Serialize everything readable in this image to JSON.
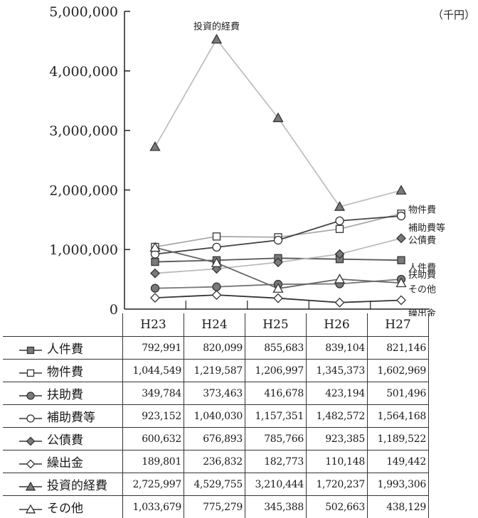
{
  "chart_data": {
    "type": "line",
    "title": "",
    "unit_label": "（千円）",
    "xlabel": "",
    "ylabel": "",
    "ylim": [
      0,
      5000000
    ],
    "y_ticks": [
      "0",
      "1,000,000",
      "2,000,000",
      "3,000,000",
      "4,000,000",
      "5,000,000"
    ],
    "categories": [
      "H23",
      "H24",
      "H25",
      "H26",
      "H27"
    ],
    "grid": false,
    "series": [
      {
        "name": "人件費",
        "marker": "square-filled",
        "values": [
          792991,
          820099,
          855683,
          839104,
          821146
        ],
        "values_text": [
          "792,991",
          "820,099",
          "855,683",
          "839,104",
          "821,146"
        ],
        "color": "#555555"
      },
      {
        "name": "物件費",
        "marker": "square-open",
        "values": [
          1044549,
          1219587,
          1206997,
          1345373,
          1602969
        ],
        "values_text": [
          "1,044,549",
          "1,219,587",
          "1,206,997",
          "1,345,373",
          "1,602,969"
        ],
        "color": "#aaaaaa"
      },
      {
        "name": "扶助費",
        "marker": "circle-filled",
        "values": [
          349784,
          373463,
          416678,
          423194,
          501496
        ],
        "values_text": [
          "349,784",
          "373,463",
          "416,678",
          "423,194",
          "501,496"
        ],
        "color": "#777777"
      },
      {
        "name": "補助費等",
        "marker": "circle-open",
        "values": [
          923152,
          1040030,
          1157351,
          1482572,
          1564168
        ],
        "values_text": [
          "923,152",
          "1,040,030",
          "1,157,351",
          "1,482,572",
          "1,564,168"
        ],
        "color": "#444444"
      },
      {
        "name": "公債費",
        "marker": "diamond-filled",
        "values": [
          600632,
          676893,
          785766,
          923385,
          1189522
        ],
        "values_text": [
          "600,632",
          "676,893",
          "785,766",
          "923,385",
          "1,189,522"
        ],
        "color": "#bbbbbb"
      },
      {
        "name": "繰出金",
        "marker": "diamond-open",
        "values": [
          189801,
          236832,
          182773,
          110148,
          149442
        ],
        "values_text": [
          "189,801",
          "236,832",
          "182,773",
          "110,148",
          "149,442"
        ],
        "color": "#333333"
      },
      {
        "name": "投資的経費",
        "marker": "triangle-filled",
        "values": [
          2725997,
          4529755,
          3210444,
          1720237,
          1993306
        ],
        "values_text": [
          "2,725,997",
          "4,529,755",
          "3,210,444",
          "1,720,237",
          "1,993,306"
        ],
        "color": "#c0c0c0"
      },
      {
        "name": "その他",
        "marker": "triangle-open",
        "values": [
          1033679,
          775279,
          345388,
          502663,
          438129
        ],
        "values_text": [
          "1,033,679",
          "775,279",
          "345,388",
          "502,663",
          "438,129"
        ],
        "color": "#666666"
      }
    ],
    "annotations": [
      {
        "text": "投資的経費",
        "series": "投資的経費",
        "anchor": "peak"
      },
      {
        "text": "物件費",
        "series": "物件費",
        "anchor": "end"
      },
      {
        "text": "補助費等",
        "series": "補助費等",
        "anchor": "end"
      },
      {
        "text": "公債費",
        "series": "公債費",
        "anchor": "end"
      },
      {
        "text": "人件費",
        "series": "人件費",
        "anchor": "end"
      },
      {
        "text": "扶助費",
        "series": "扶助費",
        "anchor": "end"
      },
      {
        "text": "その他",
        "series": "その他",
        "anchor": "end"
      },
      {
        "text": "繰出金",
        "series": "繰出金",
        "anchor": "end"
      }
    ]
  }
}
